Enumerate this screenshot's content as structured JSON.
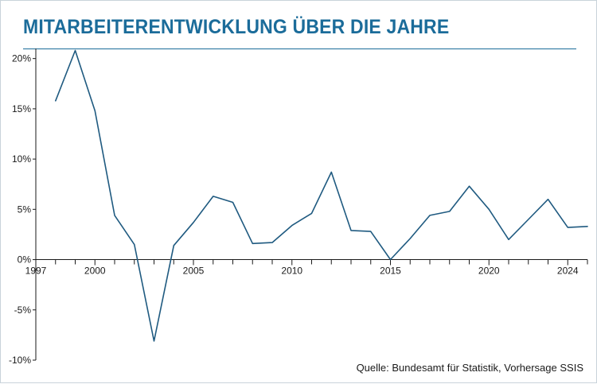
{
  "title": "MITARBEITERENTWICKLUNG ÜBER DIE JAHRE",
  "source": "Quelle: Bundesamt für Statistik, Vorhersage SSIS",
  "colors": {
    "accent": "#1b6c9a",
    "line": "#1f5a80",
    "axis": "#1a1a1a",
    "rule": "#1b6c9a"
  },
  "chart_data": {
    "type": "line",
    "title": "MITARBEITERENTWICKLUNG ÜBER DIE JAHRE",
    "xlabel": "",
    "ylabel": "",
    "xlim": [
      1997,
      2025
    ],
    "ylim": [
      -10,
      21
    ],
    "grid": false,
    "legend": "none",
    "y_ticks": [
      -10,
      -5,
      0,
      5,
      10,
      15,
      20
    ],
    "y_tick_labels": [
      "-10%",
      "-5%",
      "0%",
      "5%",
      "10%",
      "15%",
      "20%"
    ],
    "x_ticks": [
      1997,
      2000,
      2005,
      2010,
      2015,
      2020,
      2024
    ],
    "x_tick_labels": [
      "1997",
      "2000",
      "2005",
      "2010",
      "2015",
      "2020",
      "2024"
    ],
    "x_minor_ticks": [
      1997,
      1998,
      1999,
      2000,
      2001,
      2002,
      2003,
      2004,
      2005,
      2006,
      2007,
      2008,
      2009,
      2010,
      2011,
      2012,
      2013,
      2014,
      2015,
      2016,
      2017,
      2018,
      2019,
      2020,
      2021,
      2022,
      2023,
      2024,
      2025
    ],
    "series": [
      {
        "x": [
          1998,
          1999,
          2000,
          2001,
          2002,
          2003,
          2004,
          2005,
          2006,
          2007,
          2008,
          2009,
          2010,
          2011,
          2012,
          2013,
          2014,
          2015,
          2016,
          2017,
          2018,
          2019,
          2020,
          2021,
          2022,
          2023,
          2024,
          2025
        ],
        "values": [
          15.8,
          20.8,
          14.8,
          4.4,
          1.5,
          -8.1,
          1.4,
          3.7,
          6.3,
          5.7,
          1.6,
          1.7,
          3.4,
          4.6,
          8.7,
          2.9,
          2.8,
          0.0,
          2.1,
          4.4,
          4.8,
          7.3,
          5.0,
          2.0,
          4.0,
          6.0,
          3.2,
          3.3
        ]
      }
    ]
  }
}
